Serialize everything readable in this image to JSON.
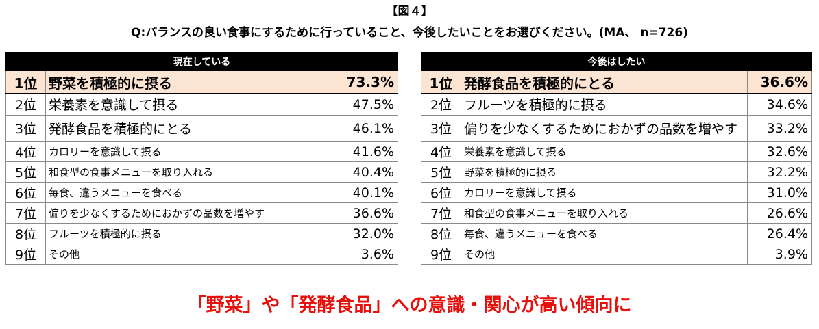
{
  "figure_label": "【図４】",
  "question": "Q:バランスの良い食事にするために行っていること、今後したいことをお選びください。(MA、 n=726)",
  "chart_data": [
    {
      "type": "table",
      "title": "現在している",
      "ranks": [
        "1位",
        "2位",
        "3位",
        "4位",
        "5位",
        "6位",
        "7位",
        "8位",
        "9位"
      ],
      "items": [
        "野菜を積極的に摂る",
        "栄養素を意識して摂る",
        "発酵食品を積極的にとる",
        "カロリーを意識して摂る",
        "和食型の食事メニューを取り入れる",
        "毎食、違うメニューを食べる",
        "偏りを少なくするためにおかずの品数を増やす",
        "フルーツを積極的に摂る",
        "その他"
      ],
      "values": [
        73.3,
        47.5,
        46.1,
        41.6,
        40.4,
        40.1,
        36.6,
        32.0,
        3.6
      ],
      "value_labels": [
        "73.3%",
        "47.5%",
        "46.1%",
        "41.6%",
        "40.4%",
        "40.1%",
        "36.6%",
        "32.0%",
        "3.6%"
      ]
    },
    {
      "type": "table",
      "title": "今後はしたい",
      "ranks": [
        "1位",
        "2位",
        "3位",
        "4位",
        "5位",
        "6位",
        "7位",
        "8位",
        "9位"
      ],
      "items": [
        "発酵食品を積極的にとる",
        "フルーツを積極的に摂る",
        "偏りを少なくするためにおかずの品数を増やす",
        "栄養素を意識して摂る",
        "野菜を積極的に摂る",
        "カロリーを意識して摂る",
        "和食型の食事メニューを取り入れる",
        "毎食、違うメニューを食べる",
        "その他"
      ],
      "values": [
        36.6,
        34.6,
        33.2,
        32.6,
        32.2,
        31.0,
        26.6,
        26.4,
        3.9
      ],
      "value_labels": [
        "36.6%",
        "34.6%",
        "33.2%",
        "32.6%",
        "32.2%",
        "31.0%",
        "26.6%",
        "26.4%",
        "3.9%"
      ]
    }
  ],
  "conclusion": "「野菜」や「発酵食品」への意識・関心が高い傾向に",
  "colors": {
    "highlight_row": "#fce4d3",
    "header_bg": "#000000",
    "conclusion_text": "#e8100c"
  }
}
